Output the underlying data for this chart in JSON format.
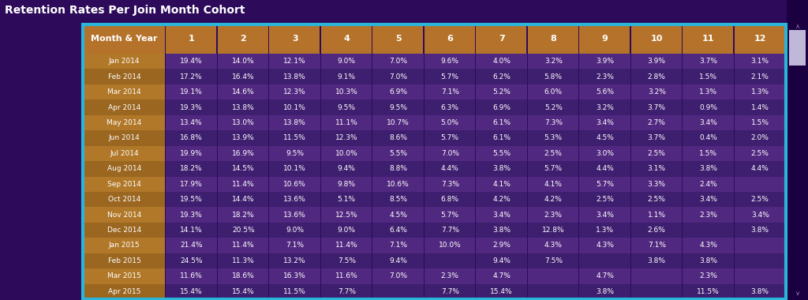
{
  "title": "Retention Rates Per Join Month Cohort",
  "title_color": "#ffffff",
  "title_fontsize": 10,
  "background_color": "#2d0b5a",
  "header_bg_color": "#b5722a",
  "header_text_color": "#ffffff",
  "cell_text_color": "#ffffff",
  "border_color": "#2bb5d8",
  "col_header": [
    "Month & Year",
    "1",
    "2",
    "3",
    "4",
    "5",
    "6",
    "7",
    "8",
    "9",
    "10",
    "11",
    "12"
  ],
  "label_col_colors": [
    "#b07828",
    "#9a6620",
    "#b07828",
    "#9a6620",
    "#b07828",
    "#9a6620",
    "#b07828",
    "#9a6620",
    "#b07828",
    "#9a6620",
    "#b07828",
    "#9a6620",
    "#b07828",
    "#9a6620",
    "#b07828",
    "#9a6620"
  ],
  "data_col_colors": [
    "#5a2d8a",
    "#4a2070",
    "#5a2d8a",
    "#4a2070",
    "#5a2d8a",
    "#4a2070",
    "#5a2d8a",
    "#4a2070",
    "#5a2d8a",
    "#4a2070",
    "#5a2d8a",
    "#4a2070",
    "#5a2d8a",
    "#4a2070",
    "#5a2d8a",
    "#4a2070"
  ],
  "rows": [
    [
      "Jan 2014",
      "19.4%",
      "14.0%",
      "12.1%",
      "9.0%",
      "7.0%",
      "9.6%",
      "4.0%",
      "3.2%",
      "3.9%",
      "3.9%",
      "3.7%",
      "3.1%"
    ],
    [
      "Feb 2014",
      "17.2%",
      "16.4%",
      "13.8%",
      "9.1%",
      "7.0%",
      "5.7%",
      "6.2%",
      "5.8%",
      "2.3%",
      "2.8%",
      "1.5%",
      "2.1%"
    ],
    [
      "Mar 2014",
      "19.1%",
      "14.6%",
      "12.3%",
      "10.3%",
      "6.9%",
      "7.1%",
      "5.2%",
      "6.0%",
      "5.6%",
      "3.2%",
      "1.3%",
      "1.3%"
    ],
    [
      "Apr 2014",
      "19.3%",
      "13.8%",
      "10.1%",
      "9.5%",
      "9.5%",
      "6.3%",
      "6.9%",
      "5.2%",
      "3.2%",
      "3.7%",
      "0.9%",
      "1.4%"
    ],
    [
      "May 2014",
      "13.4%",
      "13.0%",
      "13.8%",
      "11.1%",
      "10.7%",
      "5.0%",
      "6.1%",
      "7.3%",
      "3.4%",
      "2.7%",
      "3.4%",
      "1.5%"
    ],
    [
      "Jun 2014",
      "16.8%",
      "13.9%",
      "11.5%",
      "12.3%",
      "8.6%",
      "5.7%",
      "6.1%",
      "5.3%",
      "4.5%",
      "3.7%",
      "0.4%",
      "2.0%"
    ],
    [
      "Jul 2014",
      "19.9%",
      "16.9%",
      "9.5%",
      "10.0%",
      "5.5%",
      "7.0%",
      "5.5%",
      "2.5%",
      "3.0%",
      "2.5%",
      "1.5%",
      "2.5%"
    ],
    [
      "Aug 2014",
      "18.2%",
      "14.5%",
      "10.1%",
      "9.4%",
      "8.8%",
      "4.4%",
      "3.8%",
      "5.7%",
      "4.4%",
      "3.1%",
      "3.8%",
      "4.4%"
    ],
    [
      "Sep 2014",
      "17.9%",
      "11.4%",
      "10.6%",
      "9.8%",
      "10.6%",
      "7.3%",
      "4.1%",
      "4.1%",
      "5.7%",
      "3.3%",
      "2.4%",
      ""
    ],
    [
      "Oct 2014",
      "19.5%",
      "14.4%",
      "13.6%",
      "5.1%",
      "8.5%",
      "6.8%",
      "4.2%",
      "4.2%",
      "2.5%",
      "2.5%",
      "3.4%",
      "2.5%"
    ],
    [
      "Nov 2014",
      "19.3%",
      "18.2%",
      "13.6%",
      "12.5%",
      "4.5%",
      "5.7%",
      "3.4%",
      "2.3%",
      "3.4%",
      "1.1%",
      "2.3%",
      "3.4%"
    ],
    [
      "Dec 2014",
      "14.1%",
      "20.5%",
      "9.0%",
      "9.0%",
      "6.4%",
      "7.7%",
      "3.8%",
      "12.8%",
      "1.3%",
      "2.6%",
      "",
      "3.8%"
    ],
    [
      "Jan 2015",
      "21.4%",
      "11.4%",
      "7.1%",
      "11.4%",
      "7.1%",
      "10.0%",
      "2.9%",
      "4.3%",
      "4.3%",
      "7.1%",
      "4.3%",
      ""
    ],
    [
      "Feb 2015",
      "24.5%",
      "11.3%",
      "13.2%",
      "7.5%",
      "9.4%",
      "",
      "9.4%",
      "7.5%",
      "",
      "3.8%",
      "3.8%",
      ""
    ],
    [
      "Mar 2015",
      "11.6%",
      "18.6%",
      "16.3%",
      "11.6%",
      "7.0%",
      "2.3%",
      "4.7%",
      "",
      "4.7%",
      "",
      "2.3%",
      ""
    ],
    [
      "Apr 2015",
      "15.4%",
      "15.4%",
      "11.5%",
      "7.7%",
      "",
      "7.7%",
      "15.4%",
      "",
      "3.8%",
      "",
      "11.5%",
      "3.8%"
    ]
  ],
  "fig_width": 10.24,
  "fig_height": 3.8,
  "dpi": 100
}
